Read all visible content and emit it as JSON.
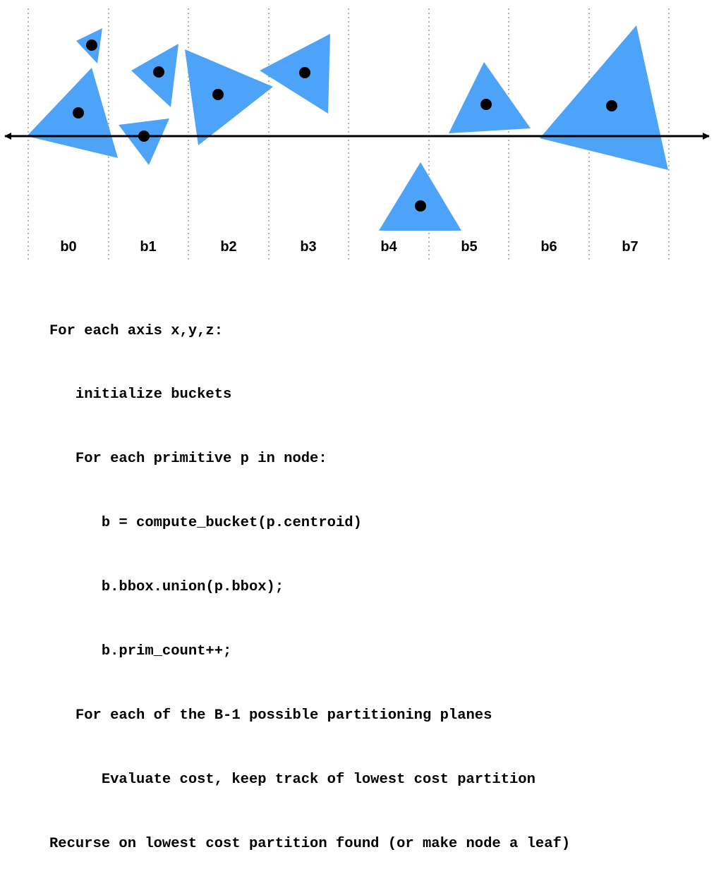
{
  "colors": {
    "primitive_fill": "#4da3f7",
    "centroid": "#000000",
    "axis": "#000000",
    "bucket_divider": "#b3b3b3"
  },
  "buckets": [
    "b0",
    "b1",
    "b2",
    "b3",
    "b4",
    "b5",
    "b6",
    "b7"
  ],
  "code": [
    {
      "indent": 0,
      "text": "For each axis x,y,z:"
    },
    {
      "indent": 1,
      "text": "initialize buckets"
    },
    {
      "indent": 1,
      "text": "For each primitive p in node:"
    },
    {
      "indent": 2,
      "text": "b = compute_bucket(p.centroid)"
    },
    {
      "indent": 2,
      "text": "b.bbox.union(p.bbox);"
    },
    {
      "indent": 2,
      "text": "b.prim_count++;"
    },
    {
      "indent": 1,
      "text": "For each of the B-1 possible partitioning planes"
    },
    {
      "indent": 2,
      "text": "Evaluate cost, keep track of lowest cost partition"
    },
    {
      "indent": 0,
      "text": "Recurse on lowest cost partition found (or make node a leaf)"
    }
  ]
}
